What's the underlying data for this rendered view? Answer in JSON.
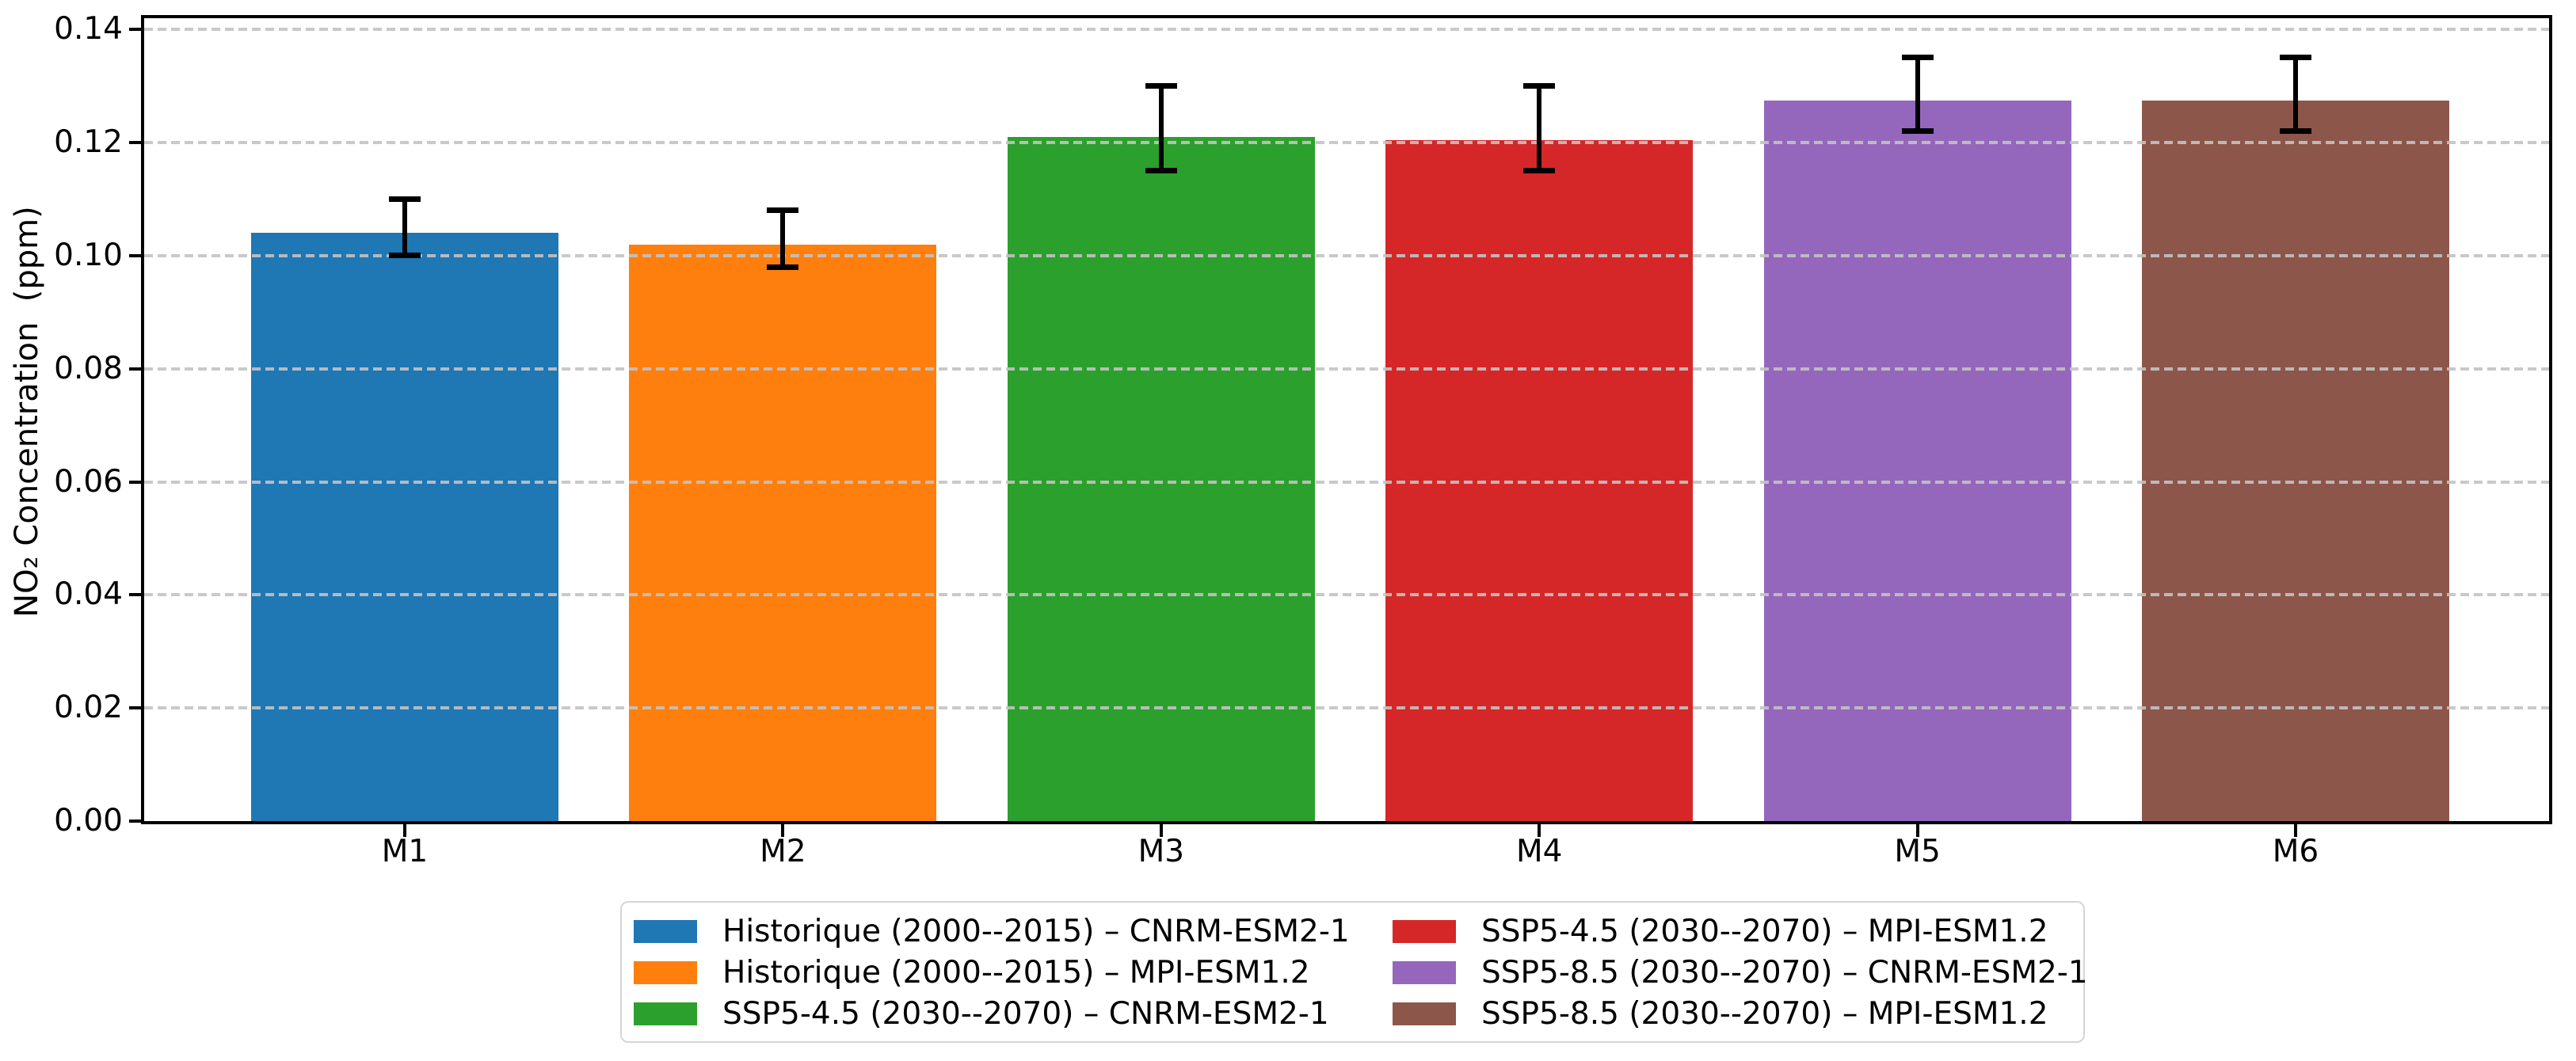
{
  "figure": {
    "background": "#ffffff"
  },
  "chart_data": {
    "type": "bar",
    "title": "",
    "categories": [
      "M1",
      "M2",
      "M3",
      "M4",
      "M5",
      "M6"
    ],
    "series": [
      {
        "name": "NO₂ concentration",
        "values": [
          0.104,
          0.102,
          0.121,
          0.1205,
          0.1275,
          0.1275
        ],
        "error_caps_low": [
          0.1,
          0.098,
          0.115,
          0.115,
          0.122,
          0.122
        ],
        "error_caps_high": [
          0.11,
          0.108,
          0.13,
          0.13,
          0.135,
          0.135
        ]
      }
    ],
    "bar_colors": [
      "#1f77b4",
      "#ff7f0e",
      "#2ca02c",
      "#d62728",
      "#9467bd",
      "#8c564b"
    ],
    "error_bar_color": "#000000",
    "xlabel": "",
    "ylabel": "NO₂ Concentration  (ppm)",
    "ylim": [
      0,
      0.142
    ],
    "yticks": [
      {
        "value": 0.0,
        "label": "0.00"
      },
      {
        "value": 0.02,
        "label": "0.02"
      },
      {
        "value": 0.04,
        "label": "0.04"
      },
      {
        "value": 0.06,
        "label": "0.06"
      },
      {
        "value": 0.08,
        "label": "0.08"
      },
      {
        "value": 0.1,
        "label": "0.10"
      },
      {
        "value": 0.12,
        "label": "0.12"
      },
      {
        "value": 0.14,
        "label": "0.14"
      }
    ],
    "grid": {
      "axis": "y",
      "style": "dashed",
      "color": "#c3c3c3",
      "on_top": true
    },
    "legend": {
      "position": "below-center",
      "columns": 2,
      "entries": [
        {
          "label": "Historique (2000--2015) – CNRM-ESM2-1",
          "color": "#1f77b4"
        },
        {
          "label": "Historique (2000--2015) – MPI-ESM1.2",
          "color": "#ff7f0e"
        },
        {
          "label": "SSP5-4.5 (2030--2070) – CNRM-ESM2-1",
          "color": "#2ca02c"
        },
        {
          "label": "SSP5-4.5 (2030--2070) – MPI-ESM1.2",
          "color": "#d62728"
        },
        {
          "label": "SSP5-8.5 (2030--2070) – CNRM-ESM2-1",
          "color": "#9467bd"
        },
        {
          "label": "SSP5-8.5 (2030--2070) – MPI-ESM1.2",
          "color": "#8c564b"
        }
      ]
    }
  }
}
